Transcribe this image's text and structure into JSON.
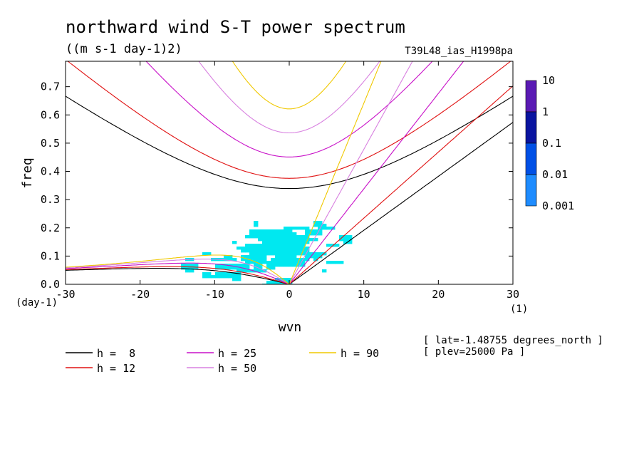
{
  "chart_data": {
    "type": "heatmap",
    "title": "northward wind S-T power spectrum",
    "units_label": "((m s-1 day-1)2)",
    "dataset_label": "T39L48_ias_H1998pa",
    "xlabel": "wvn",
    "ylabel": "freq",
    "x_unit": "(1)",
    "y_unit": "(day-1)",
    "xlim": [
      -30,
      30
    ],
    "ylim": [
      0,
      0.79
    ],
    "x_ticks": [
      "-30",
      "-20",
      "-10",
      "0",
      "10",
      "20",
      "30"
    ],
    "y_ticks": [
      "0.0",
      "0.1",
      "0.2",
      "0.3",
      "0.4",
      "0.5",
      "0.6",
      "0.7"
    ],
    "colorbar": {
      "labels": [
        "10",
        "1",
        "0.1",
        "0.01",
        "0.001"
      ],
      "colors": [
        "#5a1ab4",
        "#0a14a0",
        "#0050e6",
        "#1e8cff",
        "#00e8f0"
      ]
    },
    "dispersion_curves": [
      {
        "name": "h =  8",
        "h": 8,
        "color": "#000000"
      },
      {
        "name": "h = 12",
        "h": 12,
        "color": "#e01010"
      },
      {
        "name": "h = 25",
        "h": 25,
        "color": "#c810c8"
      },
      {
        "name": "h = 50",
        "h": 50,
        "color": "#d880e0"
      },
      {
        "name": "h = 90",
        "h": 90,
        "color": "#f0c800"
      }
    ],
    "annotations": [
      "[ lat=-1.48755 degrees_north ]",
      "[ plev=25000 Pa ]"
    ]
  }
}
